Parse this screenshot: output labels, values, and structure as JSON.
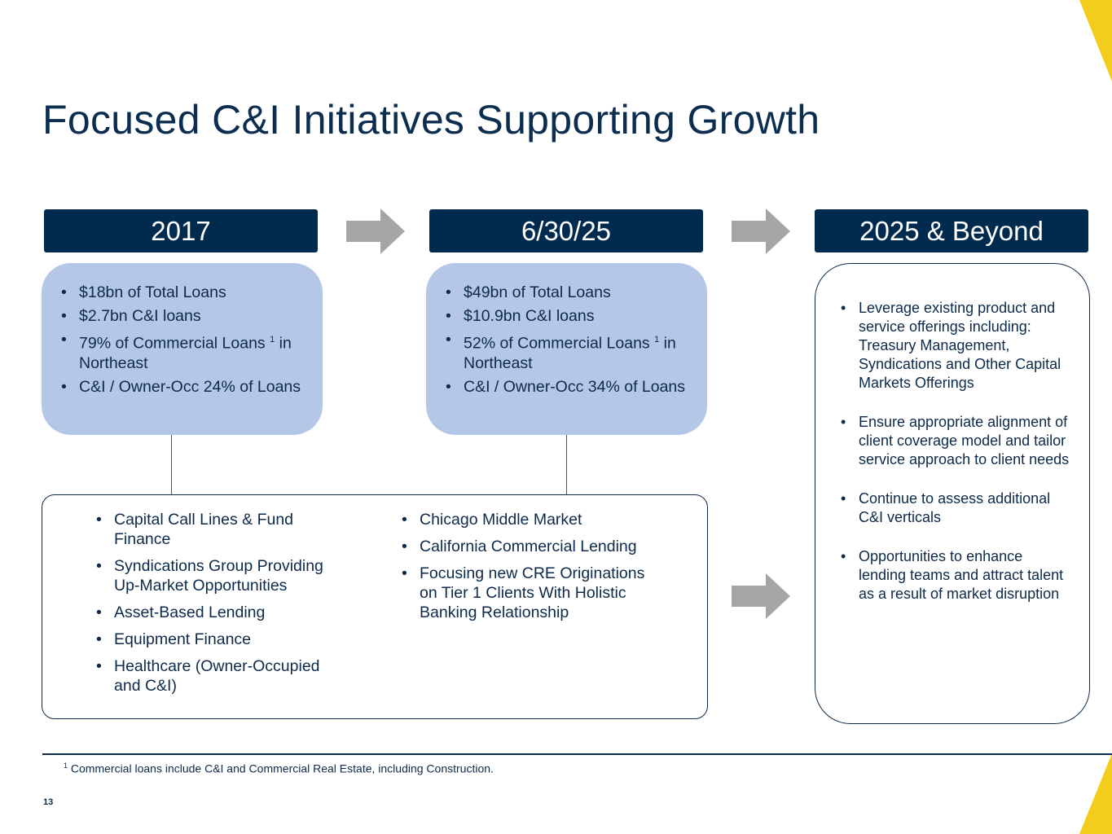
{
  "title": "Focused C&I Initiatives Supporting Growth",
  "columns": [
    {
      "header": "2017",
      "items": [
        {
          "text": "$18bn of Total Loans"
        },
        {
          "text": "$2.7bn C&I loans"
        },
        {
          "text": "79% of Commercial Loans ",
          "sup": "1",
          "rest": " in Northeast"
        },
        {
          "text": "C&I / Owner-Occ 24% of Loans"
        }
      ]
    },
    {
      "header": "6/30/25",
      "items": [
        {
          "text": "$49bn of Total Loans"
        },
        {
          "text": "$10.9bn C&I loans"
        },
        {
          "text": "52% of Commercial Loans ",
          "sup": "1",
          "rest": " in Northeast"
        },
        {
          "text": "C&I / Owner-Occ 34% of Loans"
        }
      ]
    },
    {
      "header": "2025 & Beyond",
      "items": [
        {
          "text": "Leverage existing product and service offerings including: Treasury Management, Syndications and Other Capital Markets Offerings"
        },
        {
          "text": "Ensure appropriate alignment of client coverage model and tailor service approach to client needs"
        },
        {
          "text": "Continue to assess additional C&I verticals"
        },
        {
          "text": "Opportunities to enhance lending teams and attract talent as a result of market disruption"
        }
      ]
    }
  ],
  "initiatives": {
    "left": [
      "Capital Call Lines & Fund Finance",
      "Syndications Group Providing Up-Market Opportunities",
      "Asset-Based Lending",
      "Equipment Finance",
      "Healthcare (Owner-Occupied and C&I)"
    ],
    "right": [
      "Chicago Middle Market",
      "California Commercial Lending",
      "Focusing new CRE Originations on Tier 1 Clients With Holistic Banking Relationship"
    ]
  },
  "footnote": {
    "sup": "1",
    "text": " Commercial loans include C&I and Commercial Real Estate, including Construction."
  },
  "page_number": "13",
  "colors": {
    "navy": "#002a4e",
    "light_blue": "#b4c7e7",
    "arrow_gray": "#a6a6a8",
    "accent_yellow": "#f2cd1b"
  }
}
